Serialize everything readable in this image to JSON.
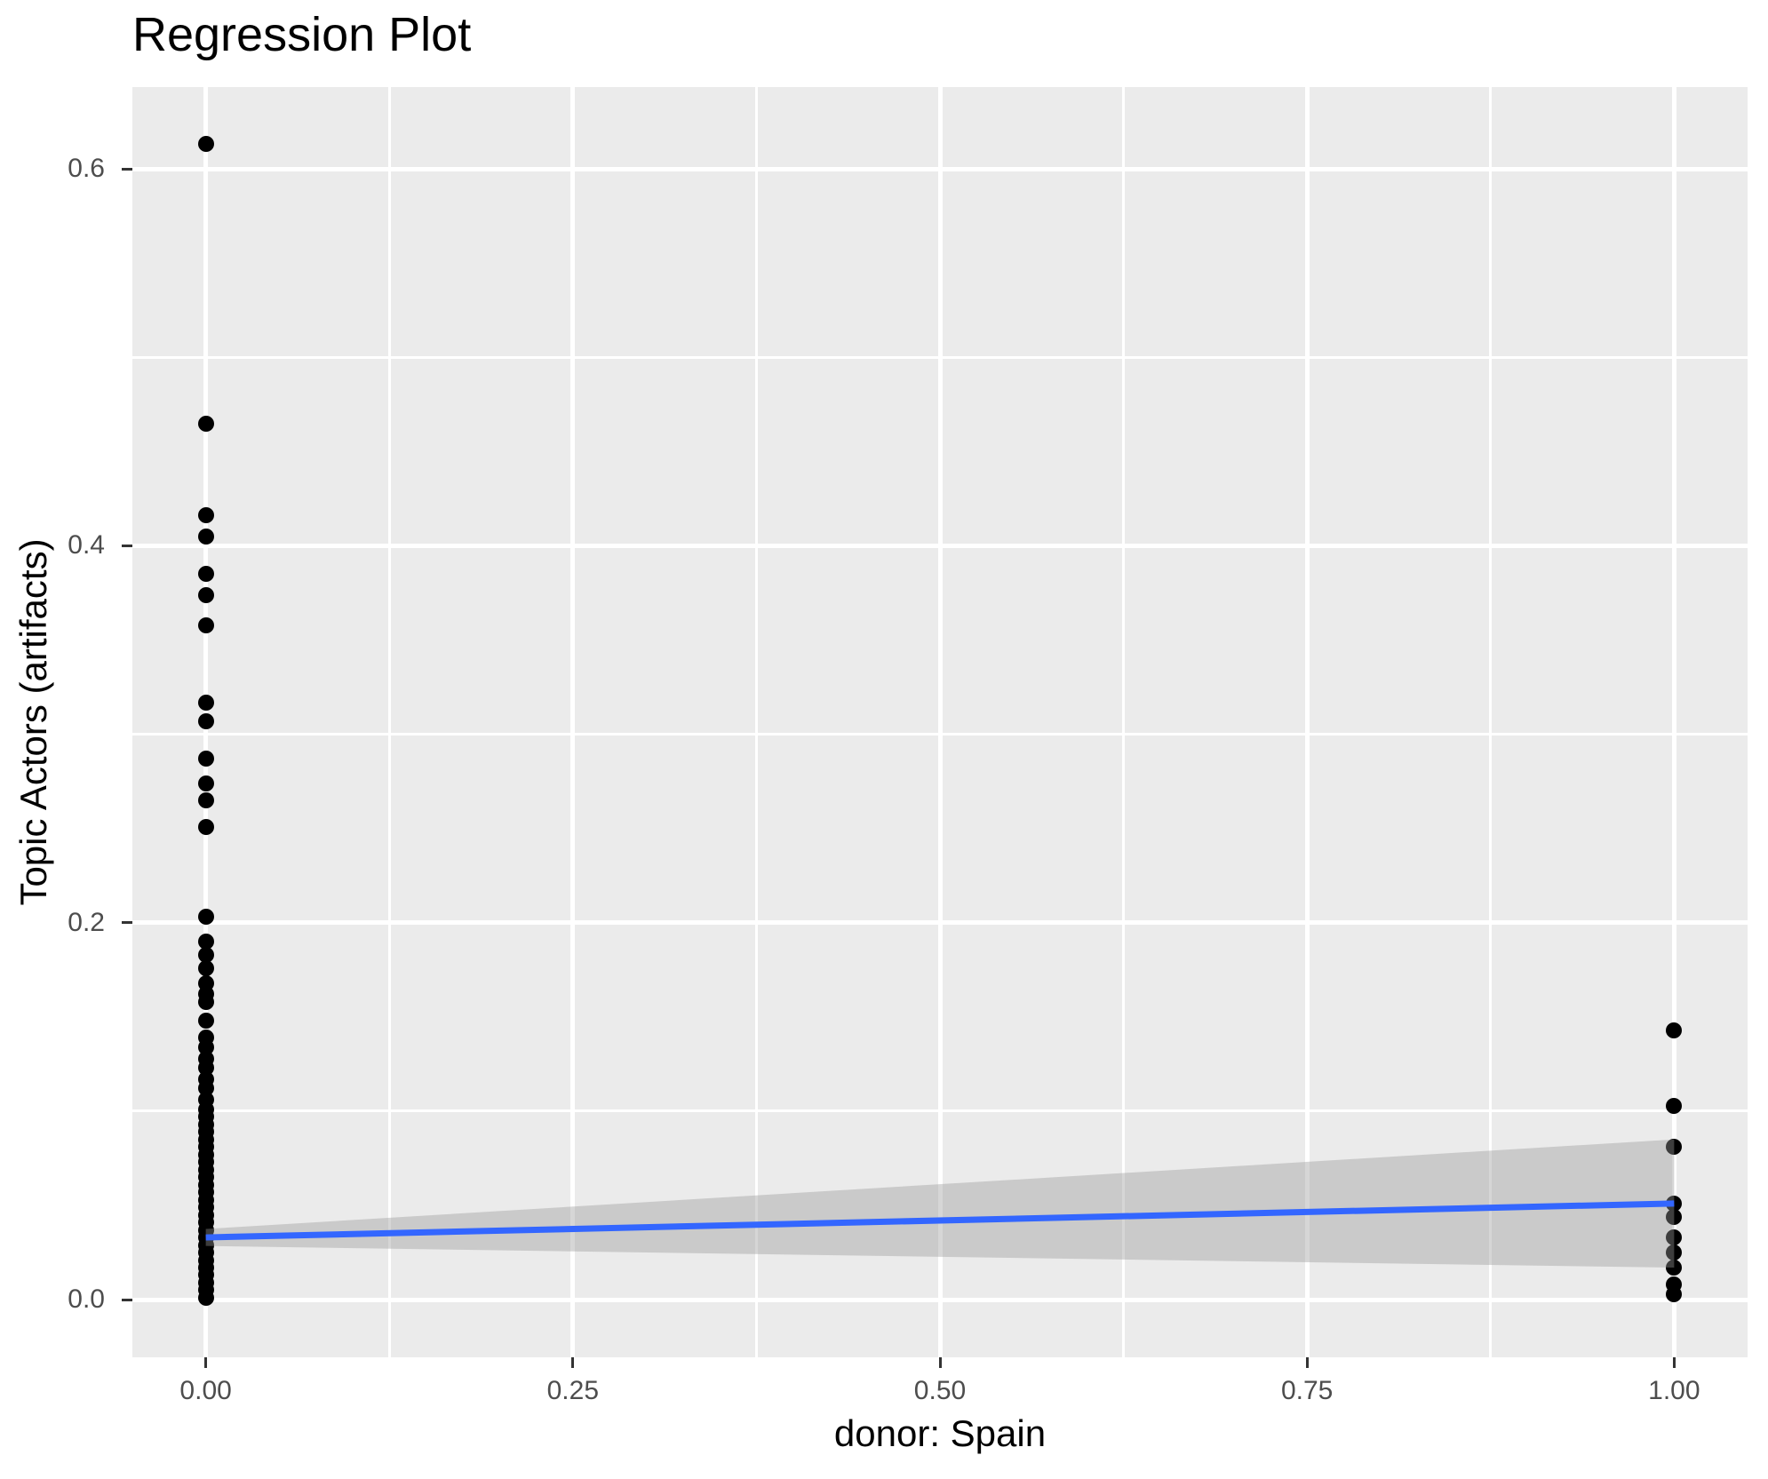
{
  "chart_data": {
    "type": "scatter",
    "title": "Regression Plot",
    "xlabel": "donor: Spain",
    "ylabel": "Topic Actors (artifacts)",
    "xlim": [
      -0.05,
      1.05
    ],
    "ylim": [
      -0.0306,
      0.6434
    ],
    "grid": "on",
    "legend_position": "none",
    "x_ticks": [
      {
        "value": 0.0,
        "label": "0.00"
      },
      {
        "value": 0.25,
        "label": "0.25"
      },
      {
        "value": 0.5,
        "label": "0.50"
      },
      {
        "value": 0.75,
        "label": "0.75"
      },
      {
        "value": 1.0,
        "label": "1.00"
      }
    ],
    "y_ticks": [
      {
        "value": 0.0,
        "label": "0.0"
      },
      {
        "value": 0.2,
        "label": "0.2"
      },
      {
        "value": 0.4,
        "label": "0.4"
      },
      {
        "value": 0.6,
        "label": "0.6"
      }
    ],
    "x_minor_ticks": [
      0.125,
      0.375,
      0.625,
      0.875
    ],
    "y_minor_ticks": [
      0.1,
      0.3,
      0.5
    ],
    "series": [
      {
        "name": "donor = 0",
        "x": 0.0,
        "y_values": [
          0.613,
          0.465,
          0.416,
          0.405,
          0.385,
          0.374,
          0.358,
          0.317,
          0.307,
          0.287,
          0.274,
          0.265,
          0.251,
          0.203,
          0.19,
          0.183,
          0.176,
          0.168,
          0.162,
          0.158,
          0.148,
          0.139,
          0.134,
          0.128,
          0.123,
          0.117,
          0.112,
          0.106,
          0.101,
          0.097,
          0.093,
          0.089,
          0.085,
          0.081,
          0.077,
          0.073,
          0.069,
          0.065,
          0.061,
          0.057,
          0.053,
          0.049,
          0.045,
          0.041,
          0.037,
          0.033,
          0.029,
          0.025,
          0.021,
          0.017,
          0.013,
          0.009,
          0.005,
          0.001
        ]
      },
      {
        "name": "donor = 1",
        "x": 1.0,
        "y_values": [
          0.143,
          0.103,
          0.081,
          0.051,
          0.044,
          0.033,
          0.025,
          0.017,
          0.008,
          0.003
        ]
      }
    ],
    "regression_line": {
      "x": [
        0.0,
        1.0
      ],
      "y": [
        0.033,
        0.051
      ]
    },
    "ci_band": {
      "x": [
        0.0,
        1.0
      ],
      "upper": [
        0.0375,
        0.085
      ],
      "lower": [
        0.0285,
        0.017
      ]
    },
    "colors": {
      "panel_background": "#EBEBEB",
      "gridline": "#FFFFFF",
      "point": "#000000",
      "regression_line": "#3366FF",
      "ci_band_fill": "#999999",
      "ci_band_opacity": 0.4,
      "tick_text": "#4D4D4D",
      "tick_mark": "#333333",
      "title_text": "#000000"
    }
  }
}
